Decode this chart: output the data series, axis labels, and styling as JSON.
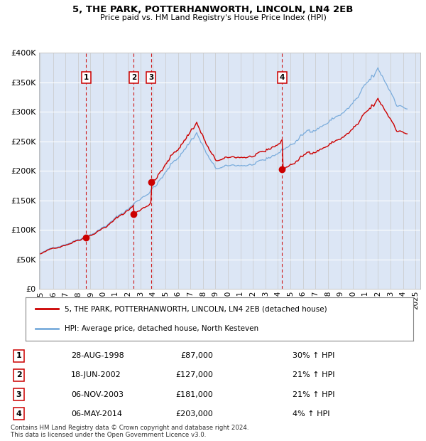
{
  "title1": "5, THE PARK, POTTERHANWORTH, LINCOLN, LN4 2EB",
  "title2": "Price paid vs. HM Land Registry's House Price Index (HPI)",
  "legend_line1": "5, THE PARK, POTTERHANWORTH, LINCOLN, LN4 2EB (detached house)",
  "legend_line2": "HPI: Average price, detached house, North Kesteven",
  "footnote": "Contains HM Land Registry data © Crown copyright and database right 2024.\nThis data is licensed under the Open Government Licence v3.0.",
  "transactions": [
    {
      "num": 1,
      "date": "28-AUG-1998",
      "price": 87000,
      "pct": "30%",
      "year_x": 1998.65
    },
    {
      "num": 2,
      "date": "18-JUN-2002",
      "price": 127000,
      "pct": "21%",
      "year_x": 2002.46
    },
    {
      "num": 3,
      "date": "06-NOV-2003",
      "price": 181000,
      "pct": "21%",
      "year_x": 2003.84
    },
    {
      "num": 4,
      "date": "06-MAY-2014",
      "price": 203000,
      "pct": "4%",
      "year_x": 2014.34
    }
  ],
  "price_color": "#cc0000",
  "hpi_color": "#7aacdc",
  "background_color": "#dce6f5",
  "ylim": [
    0,
    400000
  ],
  "xlim_start": 1994.9,
  "xlim_end": 2025.4,
  "yticks": [
    0,
    50000,
    100000,
    150000,
    200000,
    250000,
    300000,
    350000,
    400000
  ],
  "xtick_years": [
    1995,
    1996,
    1997,
    1998,
    1999,
    2000,
    2001,
    2002,
    2003,
    2004,
    2005,
    2006,
    2007,
    2008,
    2009,
    2010,
    2011,
    2012,
    2013,
    2014,
    2015,
    2016,
    2017,
    2018,
    2019,
    2020,
    2021,
    2022,
    2023,
    2024,
    2025
  ]
}
